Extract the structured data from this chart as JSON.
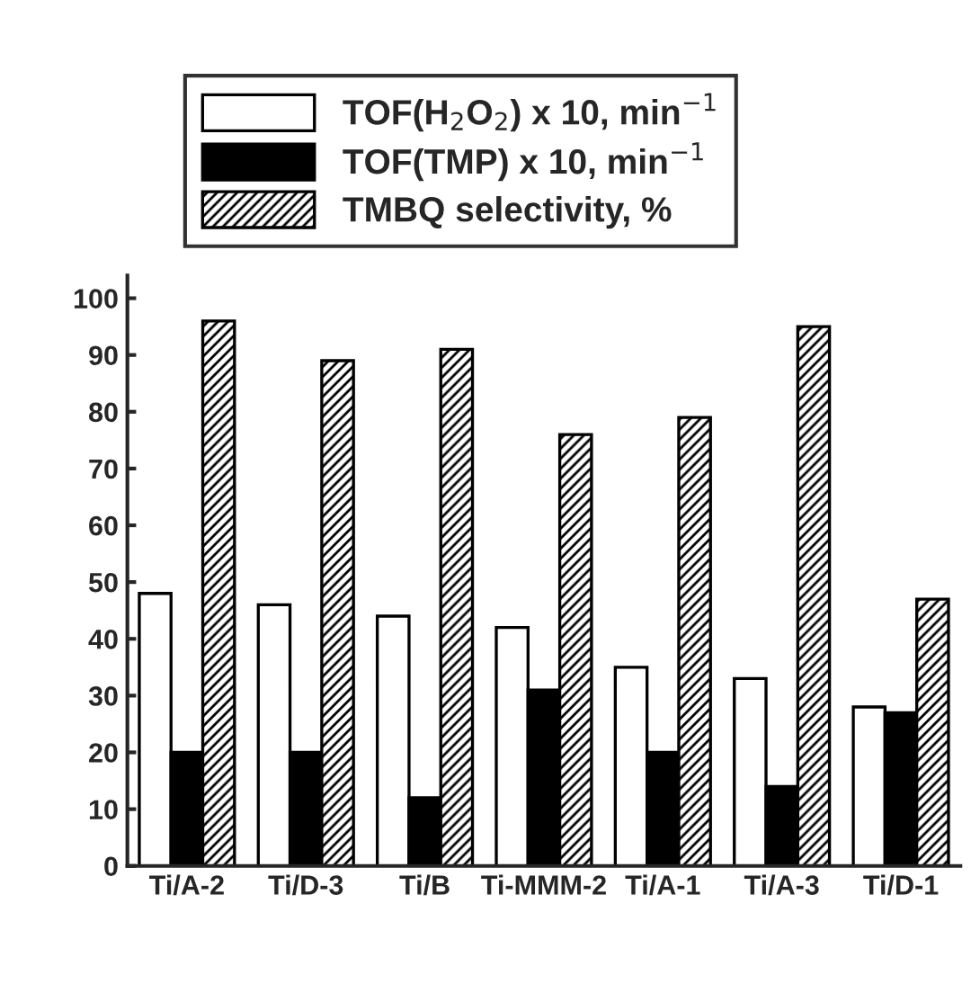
{
  "chart_data": {
    "type": "bar",
    "categories": [
      "Ti/A-2",
      "Ti/D-3",
      "Ti/B",
      "Ti-MMM-2",
      "Ti/A-1",
      "Ti/A-3",
      "Ti/D-1"
    ],
    "series": [
      {
        "name": "TOF(H$_{2}$O$_{2}$) x 10, min$^{−1}$",
        "color": "#ffffff",
        "values": [
          48,
          46,
          44,
          42,
          35,
          33,
          28
        ]
      },
      {
        "name": "TOF(TMP) x 10, min$^{−1}$",
        "color": "#000000",
        "values": [
          20,
          20,
          12,
          31,
          20,
          14,
          27
        ]
      },
      {
        "name": "TMBQ selectivity, %",
        "color": "#000000",
        "values": [
          96,
          89,
          91,
          76,
          79,
          95,
          47
        ]
      }
    ],
    "ylim": [
      0,
      104
    ],
    "yticks": [
      0,
      10,
      20,
      30,
      40,
      50,
      60,
      70,
      80,
      90,
      100
    ],
    "grid": false,
    "legend": "top"
  }
}
